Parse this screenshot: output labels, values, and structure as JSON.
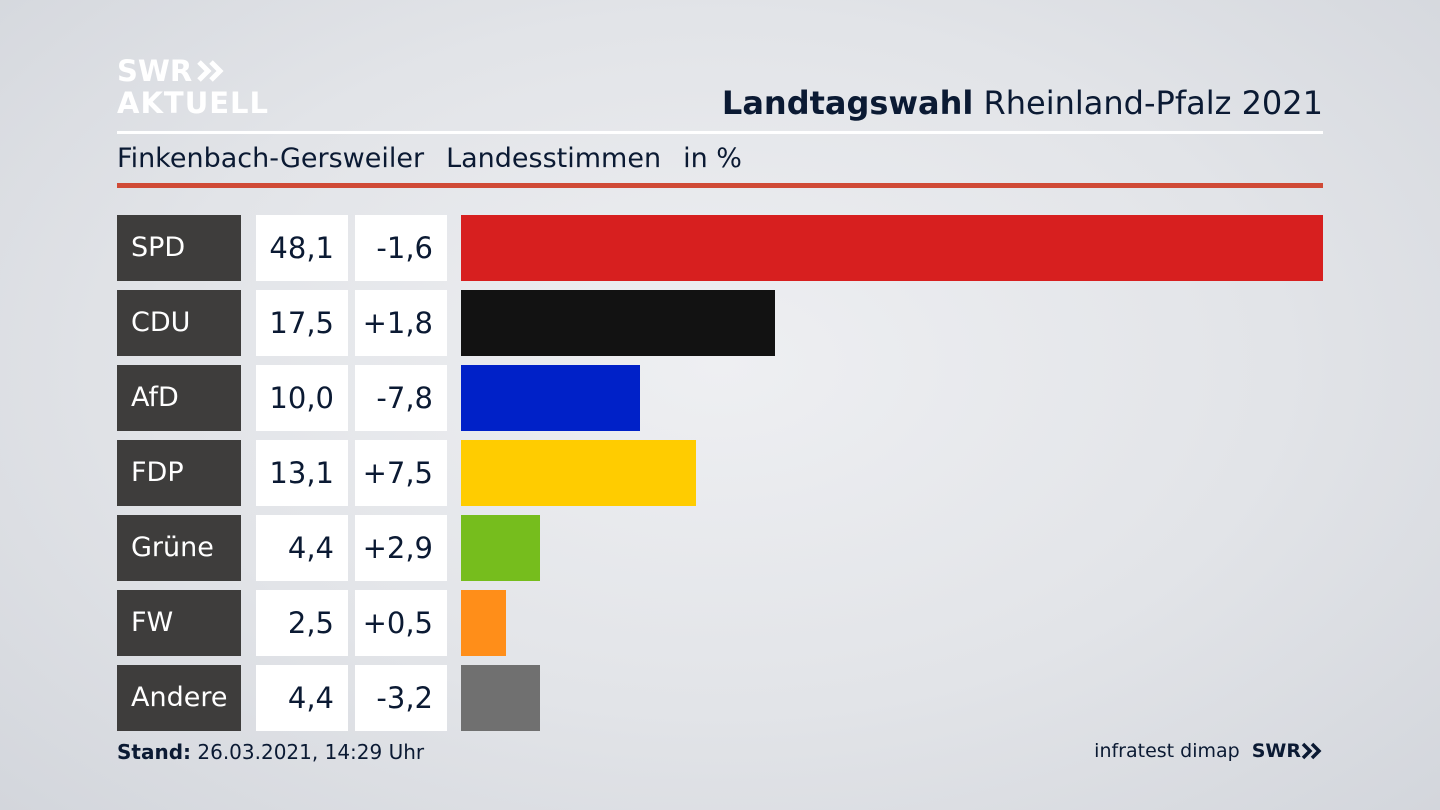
{
  "brand": {
    "line1": "SWR",
    "line2": "AKTUELL",
    "footer_logo": "SWR",
    "logo_icon": "double-chevron-right-icon"
  },
  "header": {
    "title_bold": "Landtagswahl",
    "title_rest": " Rheinland-Pfalz 2021"
  },
  "subheader": {
    "location": "Finkenbach-Gersweiler",
    "measure": "Landesstimmen",
    "unit": "in %"
  },
  "colors": {
    "rule_red": "#d04a36",
    "party_label_bg": "#3e3d3c"
  },
  "chart_data": {
    "type": "bar",
    "orientation": "horizontal",
    "categories": [
      "SPD",
      "CDU",
      "AfD",
      "FDP",
      "Grüne",
      "FW",
      "Andere"
    ],
    "values": [
      48.1,
      17.5,
      10.0,
      13.1,
      4.4,
      2.5,
      4.4
    ],
    "value_labels": [
      "48,1",
      "17,5",
      "10,0",
      "13,1",
      "4,4",
      "2,5",
      "4,4"
    ],
    "changes": [
      -1.6,
      1.8,
      -7.8,
      7.5,
      2.9,
      0.5,
      -3.2
    ],
    "change_labels": [
      "-1,6",
      "+1,8",
      "-7,8",
      "+7,5",
      "+2,9",
      "+0,5",
      "-3,2"
    ],
    "colors": [
      "#d71f1f",
      "#121212",
      "#0021c8",
      "#ffcc00",
      "#76bd1d",
      "#ff8e19",
      "#707070"
    ],
    "xlim": [
      0,
      48.1
    ],
    "grid": false
  },
  "footer": {
    "stand_label": "Stand:",
    "stand_value": " 26.03.2021, 14:29 Uhr",
    "source": "infratest dimap"
  }
}
